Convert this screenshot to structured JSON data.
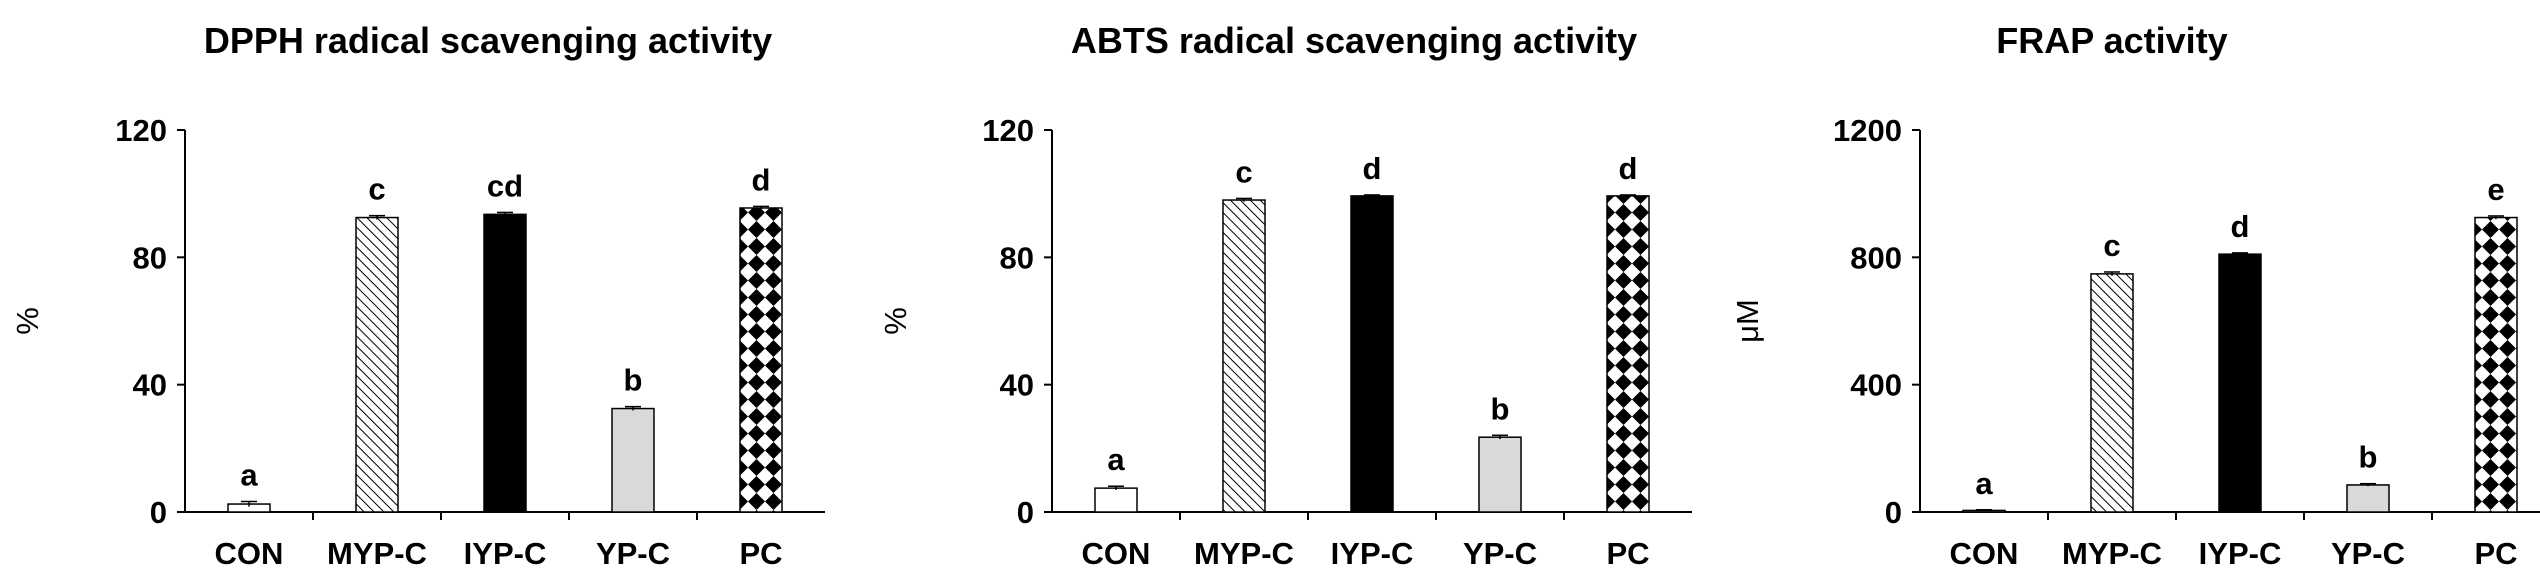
{
  "chart_data": [
    {
      "type": "bar",
      "title": "DPPH radical scavenging activity",
      "ylabel": "%",
      "xlabel": "",
      "ylim": [
        0,
        120
      ],
      "yticks": [
        "0",
        "40",
        "80",
        "120"
      ],
      "categories": [
        "CON",
        "MYP-C",
        "IYP-C",
        "YP-C",
        "PC"
      ],
      "values": [
        2.5,
        92.5,
        93.5,
        32.5,
        95.5
      ],
      "errors": [
        0.8,
        0.6,
        0.6,
        0.6,
        0.5
      ],
      "significance": [
        "a",
        "c",
        "cd",
        "b",
        "d"
      ],
      "grid": false
    },
    {
      "type": "bar",
      "title": "ABTS radical scavenging activity",
      "ylabel": "%",
      "xlabel": "",
      "ylim": [
        0,
        120
      ],
      "yticks": [
        "0",
        "40",
        "80",
        "120"
      ],
      "categories": [
        "CON",
        "MYP-C",
        "IYP-C",
        "YP-C",
        "PC"
      ],
      "values": [
        7.5,
        98.0,
        99.3,
        23.5,
        99.3
      ],
      "errors": [
        0.6,
        0.5,
        0.3,
        0.6,
        0.3
      ],
      "significance": [
        "a",
        "c",
        "d",
        "b",
        "d"
      ],
      "grid": false
    },
    {
      "type": "bar",
      "title": "FRAP activity",
      "ylabel": "μM",
      "xlabel": "",
      "ylim": [
        0,
        1200
      ],
      "yticks": [
        "0",
        "400",
        "800",
        "1200"
      ],
      "categories": [
        "CON",
        "MYP-C",
        "IYP-C",
        "YP-C",
        "PC"
      ],
      "values": [
        5,
        748,
        810,
        85,
        925
      ],
      "errors": [
        2,
        6,
        4,
        4,
        5
      ],
      "significance": [
        "a",
        "c",
        "d",
        "b",
        "e"
      ],
      "grid": false
    }
  ],
  "style": {
    "bar_fills": [
      "white",
      "diagonal-hatch",
      "black",
      "light-gray",
      "checkerboard"
    ],
    "colors": {
      "axis": "#000000",
      "light_gray": "#d9d9d9"
    }
  }
}
